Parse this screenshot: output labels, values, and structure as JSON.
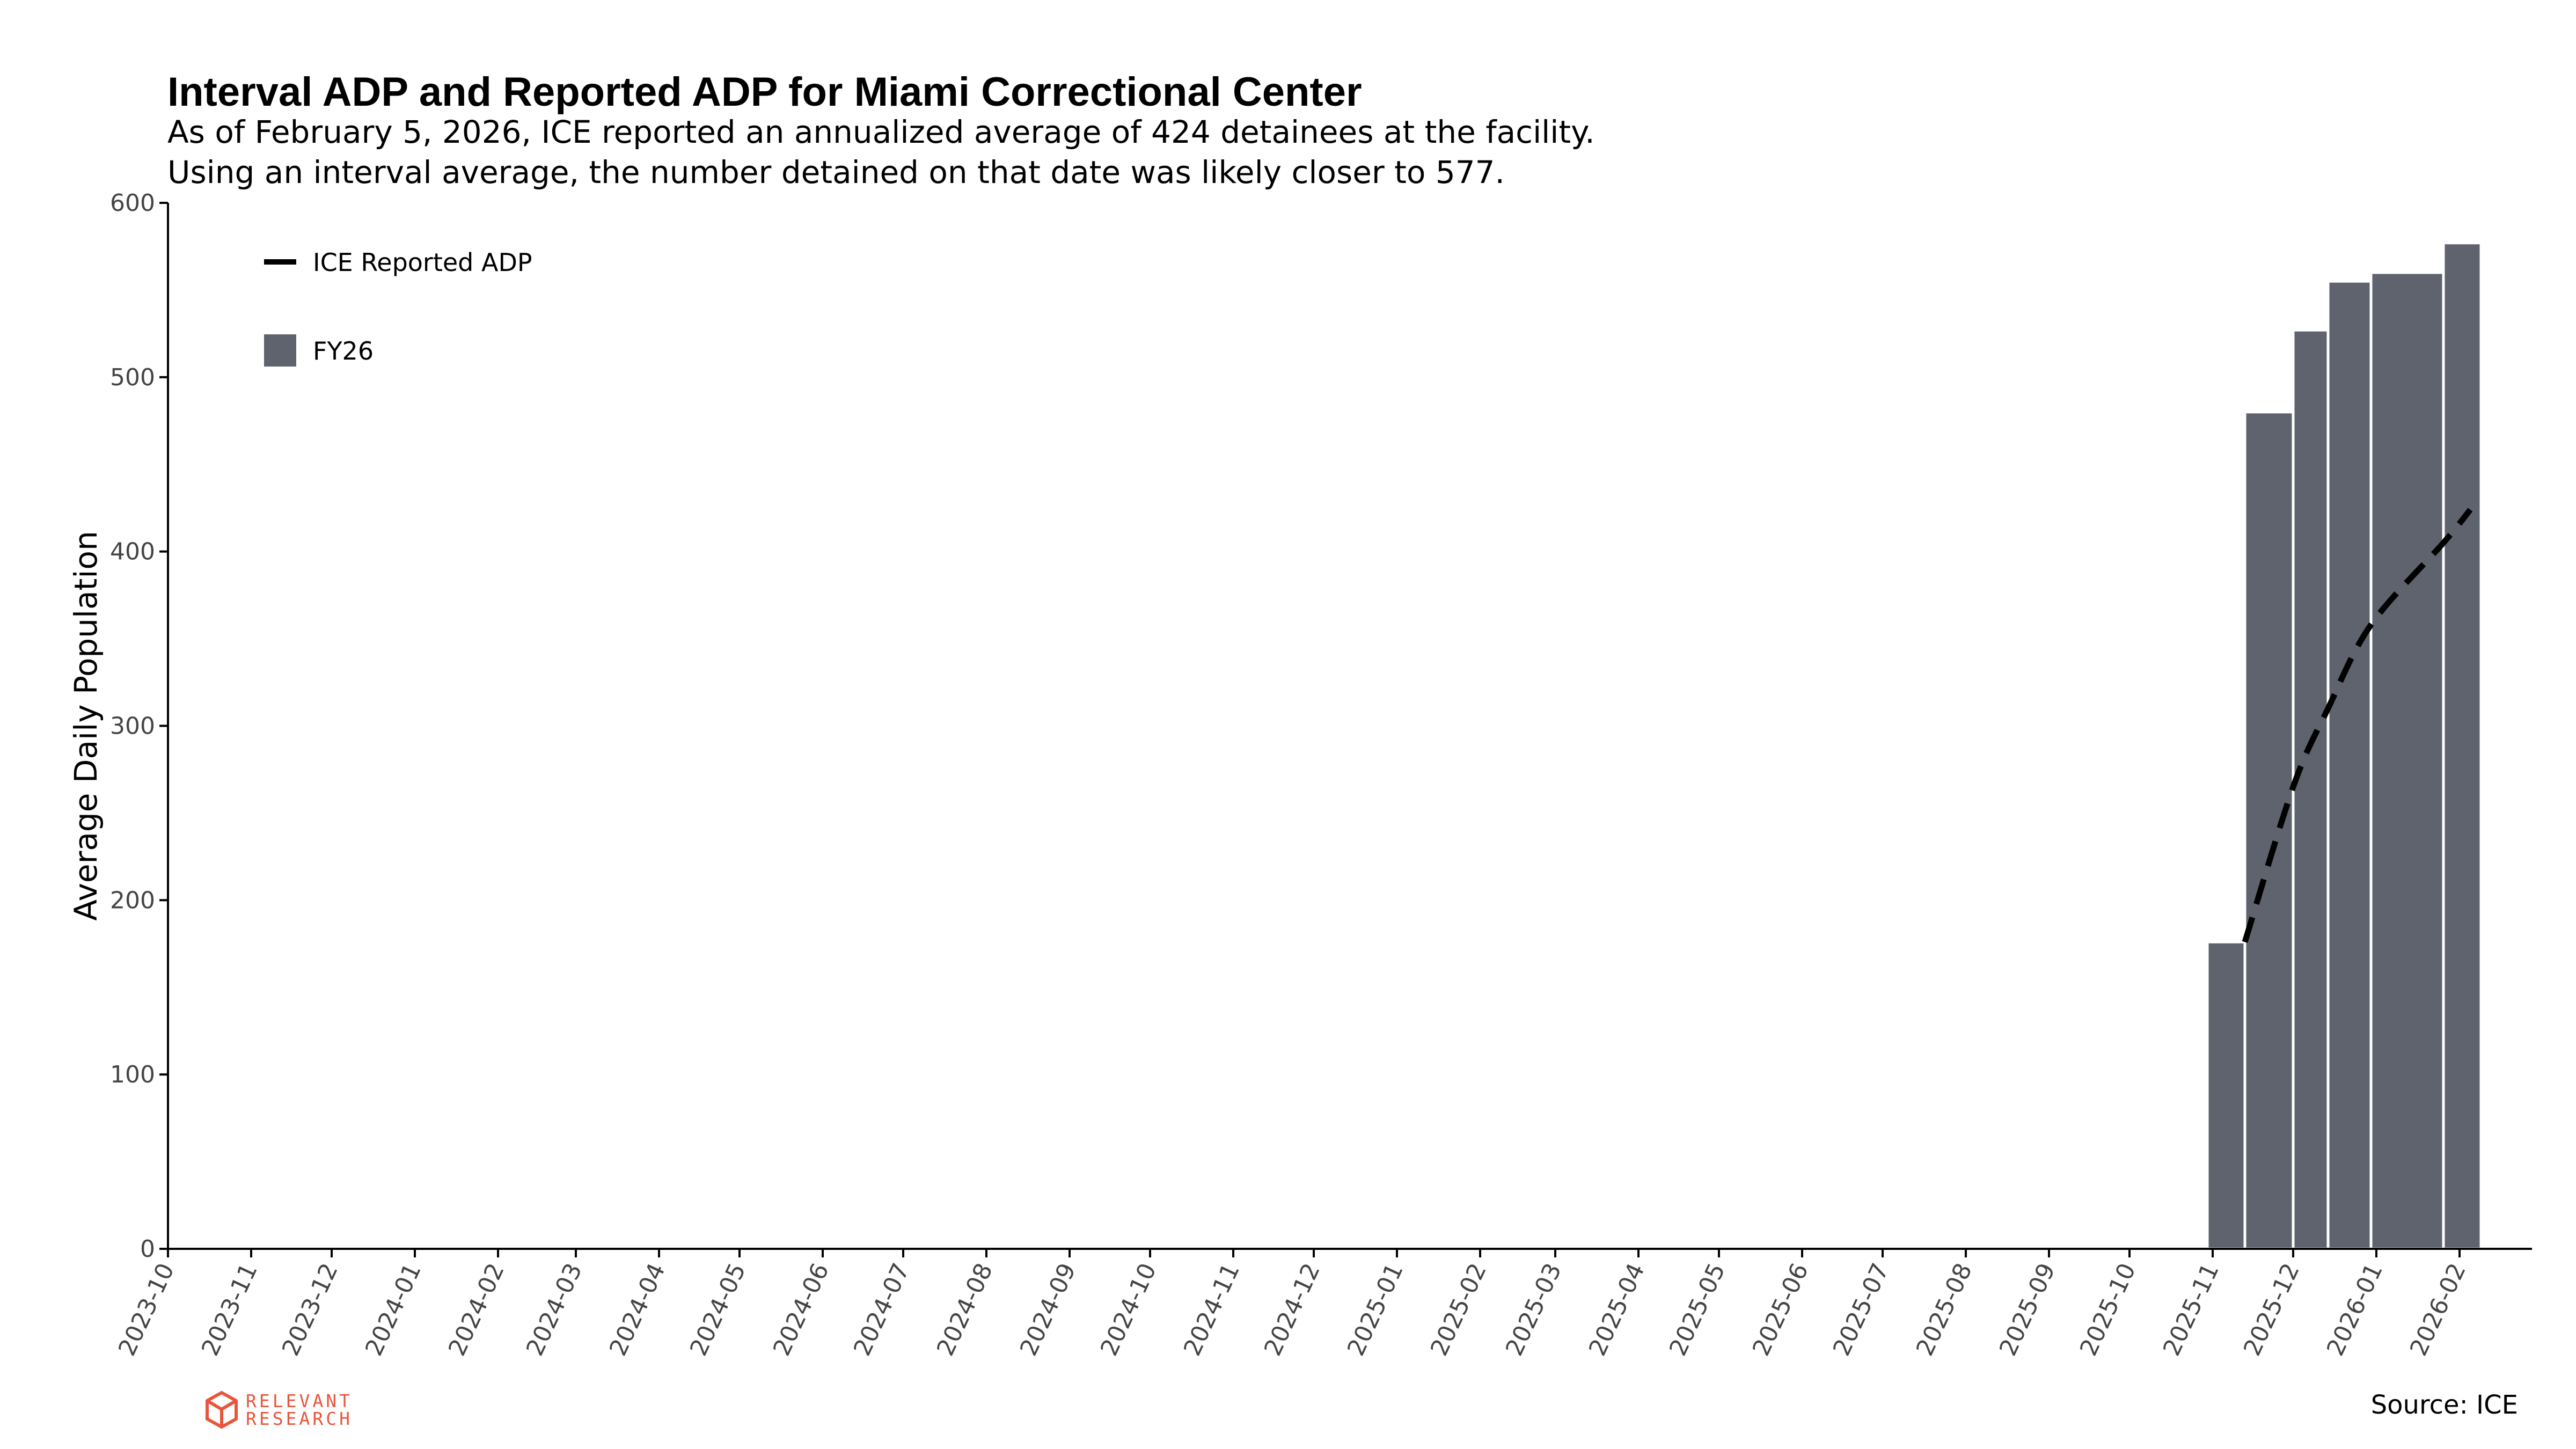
{
  "header": {
    "title": "Interval ADP and Reported ADP for Miami Correctional Center",
    "subtitle_1": "As of February 5, 2026, ICE reported an annualized average of 424 detainees at the facility.",
    "subtitle_2": "Using an interval average, the number detained on that date was likely closer to 577."
  },
  "footer": {
    "source": "Source: ICE",
    "logo_line_1": "RELEVANT",
    "logo_line_2": "RESEARCH",
    "logo_icon": "hexagon-cube-icon",
    "logo_color": "#e8553b"
  },
  "chart_data": {
    "type": "bar",
    "title": "Interval ADP and Reported ADP for Miami Correctional Center",
    "xlabel": "",
    "ylabel": "Average Daily Population",
    "ylim": [
      0,
      600
    ],
    "yticks": [
      0,
      100,
      200,
      300,
      400,
      500,
      600
    ],
    "xlim": [
      "2023-10-01",
      "2026-02-28"
    ],
    "xtick_labels": [
      "2023-10",
      "2023-11",
      "2023-12",
      "2024-01",
      "2024-02",
      "2024-03",
      "2024-04",
      "2024-05",
      "2024-06",
      "2024-07",
      "2024-08",
      "2024-09",
      "2024-10",
      "2024-11",
      "2024-12",
      "2025-01",
      "2025-02",
      "2025-03",
      "2025-04",
      "2025-05",
      "2025-06",
      "2025-07",
      "2025-08",
      "2025-09",
      "2025-10",
      "2025-11",
      "2025-12",
      "2026-01",
      "2026-02"
    ],
    "grid": false,
    "legend_position": "top-left",
    "bar_color": "#5f636e",
    "line_color": "#000000",
    "series": [
      {
        "name": "FY26",
        "kind": "bar",
        "bars": [
          {
            "start": "2025-10-30",
            "end": "2025-11-13",
            "value": 176
          },
          {
            "start": "2025-11-13",
            "end": "2025-12-01",
            "value": 480
          },
          {
            "start": "2025-12-01",
            "end": "2025-12-14",
            "value": 527
          },
          {
            "start": "2025-12-14",
            "end": "2025-12-30",
            "value": 555
          },
          {
            "start": "2025-12-30",
            "end": "2026-01-26",
            "value": 560
          },
          {
            "start": "2026-01-26",
            "end": "2026-02-09",
            "value": 577
          }
        ]
      },
      {
        "name": "ICE Reported ADP",
        "kind": "line",
        "style": "dashed",
        "points": [
          {
            "x": "2025-11-13",
            "y": 176
          },
          {
            "x": "2025-12-01",
            "y": 265
          },
          {
            "x": "2025-12-14",
            "y": 310
          },
          {
            "x": "2025-12-30",
            "y": 358
          },
          {
            "x": "2026-01-26",
            "y": 405
          },
          {
            "x": "2026-02-05",
            "y": 424
          }
        ]
      }
    ]
  }
}
